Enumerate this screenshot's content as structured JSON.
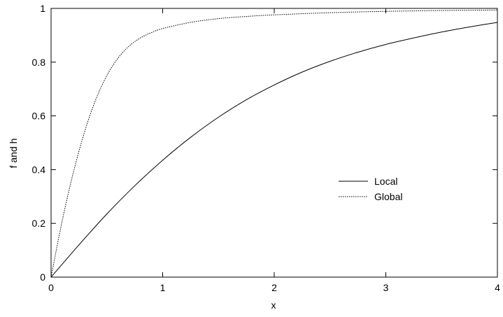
{
  "chart_data": {
    "type": "line",
    "title": "",
    "xlabel": "x",
    "ylabel": "f and h",
    "xlim": [
      0,
      4
    ],
    "ylim": [
      0,
      1
    ],
    "x_ticks": [
      0,
      1,
      2,
      3,
      4
    ],
    "y_ticks": [
      0,
      0.2,
      0.4,
      0.6,
      0.8,
      1
    ],
    "x_tick_labels": [
      "0",
      "1",
      "2",
      "3",
      "4"
    ],
    "y_tick_labels": [
      "0",
      "0.2",
      "0.4",
      "0.6",
      "0.8",
      "1"
    ],
    "grid": false,
    "legend_position": "center-right",
    "series": [
      {
        "name": "Local",
        "style": "solid",
        "color": "#000000",
        "x": [
          0,
          0.25,
          0.5,
          0.75,
          1,
          1.25,
          1.5,
          1.75,
          2,
          2.25,
          2.5,
          2.75,
          3,
          3.25,
          3.5,
          3.75,
          4
        ],
        "y": [
          0,
          0.12,
          0.235,
          0.34,
          0.435,
          0.52,
          0.595,
          0.66,
          0.715,
          0.763,
          0.803,
          0.837,
          0.866,
          0.89,
          0.912,
          0.931,
          0.948
        ]
      },
      {
        "name": "Global",
        "style": "dotted",
        "color": "#000000",
        "x": [
          0,
          0.1,
          0.2,
          0.3,
          0.4,
          0.5,
          0.6,
          0.7,
          0.8,
          0.9,
          1,
          1.25,
          1.5,
          1.75,
          2,
          2.5,
          3,
          3.5,
          4
        ],
        "y": [
          0,
          0.21,
          0.39,
          0.54,
          0.66,
          0.75,
          0.815,
          0.86,
          0.89,
          0.91,
          0.925,
          0.948,
          0.962,
          0.97,
          0.976,
          0.984,
          0.989,
          0.992,
          0.994
        ]
      }
    ]
  }
}
